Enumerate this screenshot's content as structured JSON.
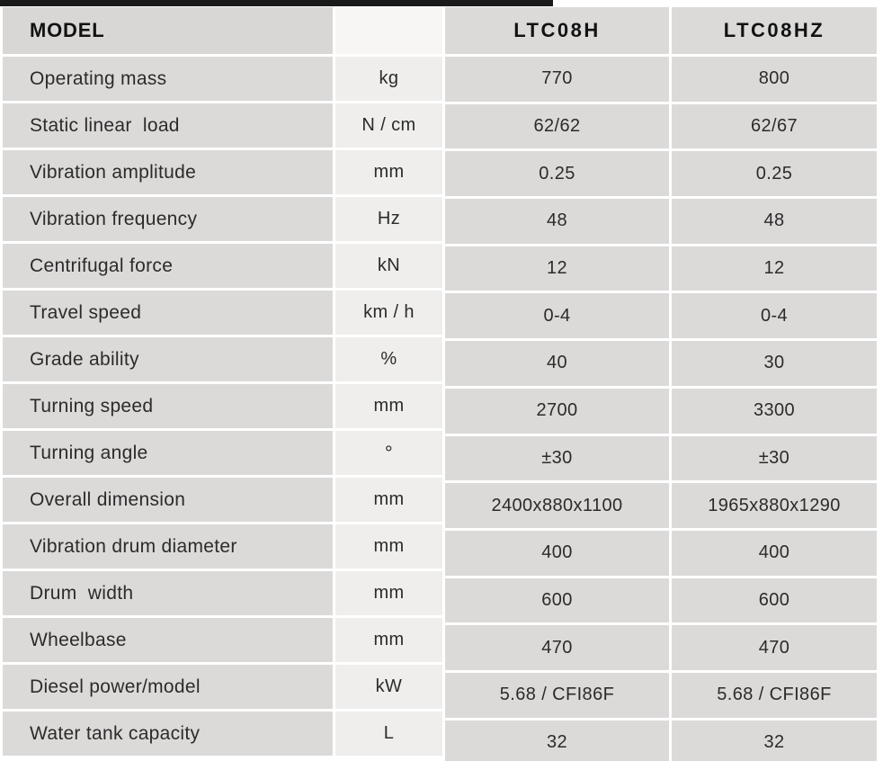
{
  "header": {
    "model_label": "MODEL",
    "model_1": "LTC08H",
    "model_2": "LTC08HZ"
  },
  "rows": [
    {
      "label": "Operating mass",
      "unit": "kg",
      "ltc08h": "770",
      "ltc08hz": "800"
    },
    {
      "label": "Static linear  load",
      "unit": "N / cm",
      "ltc08h": "62/62",
      "ltc08hz": "62/67"
    },
    {
      "label": "Vibration amplitude",
      "unit": "mm",
      "ltc08h": "0.25",
      "ltc08hz": "0.25"
    },
    {
      "label": "Vibration frequency",
      "unit": "Hz",
      "ltc08h": "48",
      "ltc08hz": "48"
    },
    {
      "label": "Centrifugal force",
      "unit": "kN",
      "ltc08h": "12",
      "ltc08hz": "12"
    },
    {
      "label": "Travel speed",
      "unit": "km / h",
      "ltc08h": "0-4",
      "ltc08hz": "0-4"
    },
    {
      "label": "Grade ability",
      "unit": "%",
      "ltc08h": "40",
      "ltc08hz": "30"
    },
    {
      "label": "Turning speed",
      "unit": "mm",
      "ltc08h": "2700",
      "ltc08hz": "3300"
    },
    {
      "label": "Turning angle",
      "unit": "°",
      "ltc08h": "±30",
      "ltc08hz": "±30"
    },
    {
      "label": "Overall dimension",
      "unit": "mm",
      "ltc08h": "2400x880x1100",
      "ltc08hz": "1965x880x1290"
    },
    {
      "label": "Vibration drum diameter",
      "unit": "mm",
      "ltc08h": "400",
      "ltc08hz": "400"
    },
    {
      "label": "Drum  width",
      "unit": "mm",
      "ltc08h": "600",
      "ltc08hz": "600"
    },
    {
      "label": "Wheelbase",
      "unit": "mm",
      "ltc08h": "470",
      "ltc08hz": "470"
    },
    {
      "label": "Diesel power/model",
      "unit": "kW",
      "ltc08h": "5.68 / CFI86F",
      "ltc08hz": "5.68 / CFI86F"
    },
    {
      "label": "Water tank capacity",
      "unit": "L",
      "ltc08h": "32",
      "ltc08hz": "32"
    }
  ]
}
